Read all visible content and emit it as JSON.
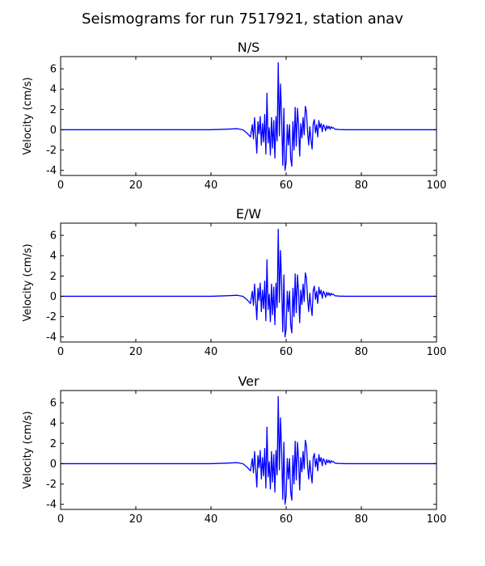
{
  "page_title": "Seismograms for run 7517921, station anav",
  "chart_data": [
    {
      "type": "line",
      "title": "N/S",
      "xlabel": "",
      "ylabel": "Velocity (cm/s)",
      "xlim": [
        0,
        100
      ],
      "ylim": [
        -4.5,
        7.2
      ],
      "xticks": [
        0,
        20,
        40,
        60,
        80,
        100
      ],
      "yticks": [
        -4,
        -2,
        0,
        2,
        4,
        6
      ],
      "grid": false,
      "color": "#0000ff",
      "series": [
        {
          "x": [
            0,
            10,
            20,
            30,
            40,
            44,
            47,
            48.5,
            49.5,
            50.5,
            51,
            51.3,
            51.6,
            51.9,
            52.2,
            52.5,
            52.8,
            53.1,
            53.4,
            53.7,
            54,
            54.3,
            54.6,
            54.9,
            55.2,
            55.5,
            55.8,
            56.1,
            56.4,
            56.7,
            57,
            57.3,
            57.6,
            57.9,
            58.2,
            58.5,
            58.8,
            59.1,
            59.4,
            59.7,
            60,
            60.3,
            60.6,
            60.9,
            61.2,
            61.5,
            61.8,
            62.1,
            62.4,
            62.7,
            63,
            63.3,
            63.6,
            63.9,
            64.2,
            64.5,
            64.8,
            65.1,
            65.4,
            65.7,
            66,
            66.3,
            66.6,
            66.9,
            67.2,
            67.5,
            67.8,
            68.1,
            68.4,
            68.7,
            69,
            69.3,
            69.6,
            69.9,
            70.2,
            70.5,
            70.8,
            71.1,
            71.4,
            71.7,
            72,
            72.3,
            72.6,
            73,
            74,
            76,
            80,
            90,
            100
          ],
          "values": [
            0,
            0,
            0,
            0,
            0,
            0.05,
            0.1,
            0,
            -0.3,
            -0.7,
            0.5,
            -0.9,
            1.2,
            -0.5,
            -2.3,
            0.8,
            -0.4,
            1.3,
            -1.5,
            0.6,
            -1.2,
            1.5,
            -2.4,
            3.6,
            -1.3,
            0.2,
            -2.5,
            1.2,
            -1.8,
            0.9,
            -2.8,
            1.3,
            -1.1,
            6.6,
            -0.6,
            4.5,
            1.2,
            -3.5,
            2.1,
            -4,
            -3.2,
            0.5,
            -1.5,
            0.5,
            -2.8,
            -3.6,
            0.8,
            -2.0,
            2.2,
            -1.6,
            2.1,
            0.5,
            -2.6,
            0.6,
            -0.8,
            1.2,
            -0.5,
            2.3,
            1.8,
            -0.2,
            -1.5,
            0.3,
            -1.0,
            -1.9,
            0.6,
            1.0,
            -0.3,
            0.5,
            -0.7,
            0.9,
            0.2,
            0.6,
            -0.2,
            0.5,
            0.3,
            -0.1,
            0.4,
            0.1,
            0.35,
            0.05,
            0.3,
            0.15,
            0.2,
            0.05,
            0.02,
            0,
            0,
            0,
            0
          ]
        }
      ]
    },
    {
      "type": "line",
      "title": "E/W",
      "xlabel": "",
      "ylabel": "Velocity (cm/s)",
      "xlim": [
        0,
        100
      ],
      "ylim": [
        -4.5,
        7.2
      ],
      "xticks": [
        0,
        20,
        40,
        60,
        80,
        100
      ],
      "yticks": [
        -4,
        -2,
        0,
        2,
        4,
        6
      ],
      "grid": false,
      "color": "#0000ff",
      "series": [
        {
          "x": [
            0,
            10,
            20,
            30,
            40,
            44,
            47,
            48.5,
            49.5,
            50.5,
            51,
            51.3,
            51.6,
            51.9,
            52.2,
            52.5,
            52.8,
            53.1,
            53.4,
            53.7,
            54,
            54.3,
            54.6,
            54.9,
            55.2,
            55.5,
            55.8,
            56.1,
            56.4,
            56.7,
            57,
            57.3,
            57.6,
            57.9,
            58.2,
            58.5,
            58.8,
            59.1,
            59.4,
            59.7,
            60,
            60.3,
            60.6,
            60.9,
            61.2,
            61.5,
            61.8,
            62.1,
            62.4,
            62.7,
            63,
            63.3,
            63.6,
            63.9,
            64.2,
            64.5,
            64.8,
            65.1,
            65.4,
            65.7,
            66,
            66.3,
            66.6,
            66.9,
            67.2,
            67.5,
            67.8,
            68.1,
            68.4,
            68.7,
            69,
            69.3,
            69.6,
            69.9,
            70.2,
            70.5,
            70.8,
            71.1,
            71.4,
            71.7,
            72,
            72.3,
            72.6,
            73,
            74,
            76,
            80,
            90,
            100
          ],
          "values": [
            0,
            0,
            0,
            0,
            0,
            0.05,
            0.1,
            0,
            -0.3,
            -0.7,
            0.5,
            -0.9,
            1.2,
            -0.5,
            -2.3,
            0.8,
            -0.4,
            1.3,
            -1.5,
            0.6,
            -1.2,
            1.5,
            -2.4,
            3.6,
            -1.3,
            0.2,
            -2.5,
            1.2,
            -1.8,
            0.9,
            -2.8,
            1.3,
            -1.1,
            6.6,
            -0.6,
            4.5,
            1.2,
            -3.5,
            2.1,
            -4,
            -3.2,
            0.5,
            -1.5,
            0.5,
            -2.8,
            -3.6,
            0.8,
            -2.0,
            2.2,
            -1.6,
            2.1,
            0.5,
            -2.6,
            0.6,
            -0.8,
            1.2,
            -0.5,
            2.3,
            1.8,
            -0.2,
            -1.5,
            0.3,
            -1.0,
            -1.9,
            0.6,
            1.0,
            -0.3,
            0.5,
            -0.7,
            0.9,
            0.2,
            0.6,
            -0.2,
            0.5,
            0.3,
            -0.1,
            0.4,
            0.1,
            0.35,
            0.05,
            0.3,
            0.15,
            0.2,
            0.05,
            0.02,
            0,
            0,
            0,
            0
          ]
        }
      ]
    },
    {
      "type": "line",
      "title": "Ver",
      "xlabel": "",
      "ylabel": "Velocity (cm/s)",
      "xlim": [
        0,
        100
      ],
      "ylim": [
        -4.5,
        7.2
      ],
      "xticks": [
        0,
        20,
        40,
        60,
        80,
        100
      ],
      "yticks": [
        -4,
        -2,
        0,
        2,
        4,
        6
      ],
      "grid": false,
      "color": "#0000ff",
      "series": [
        {
          "x": [
            0,
            10,
            20,
            30,
            40,
            44,
            47,
            48.5,
            49.5,
            50.5,
            51,
            51.3,
            51.6,
            51.9,
            52.2,
            52.5,
            52.8,
            53.1,
            53.4,
            53.7,
            54,
            54.3,
            54.6,
            54.9,
            55.2,
            55.5,
            55.8,
            56.1,
            56.4,
            56.7,
            57,
            57.3,
            57.6,
            57.9,
            58.2,
            58.5,
            58.8,
            59.1,
            59.4,
            59.7,
            60,
            60.3,
            60.6,
            60.9,
            61.2,
            61.5,
            61.8,
            62.1,
            62.4,
            62.7,
            63,
            63.3,
            63.6,
            63.9,
            64.2,
            64.5,
            64.8,
            65.1,
            65.4,
            65.7,
            66,
            66.3,
            66.6,
            66.9,
            67.2,
            67.5,
            67.8,
            68.1,
            68.4,
            68.7,
            69,
            69.3,
            69.6,
            69.9,
            70.2,
            70.5,
            70.8,
            71.1,
            71.4,
            71.7,
            72,
            72.3,
            72.6,
            73,
            74,
            76,
            80,
            90,
            100
          ],
          "values": [
            0,
            0,
            0,
            0,
            0,
            0.05,
            0.1,
            0,
            -0.3,
            -0.7,
            0.5,
            -0.9,
            1.2,
            -0.5,
            -2.3,
            0.8,
            -0.4,
            1.3,
            -1.5,
            0.6,
            -1.2,
            1.5,
            -2.4,
            3.6,
            -1.3,
            0.2,
            -2.5,
            1.2,
            -1.8,
            0.9,
            -2.8,
            1.3,
            -1.1,
            6.6,
            -0.6,
            4.5,
            1.2,
            -3.5,
            2.1,
            -4,
            -3.2,
            0.5,
            -1.5,
            0.5,
            -2.8,
            -3.6,
            0.8,
            -2.0,
            2.2,
            -1.6,
            2.1,
            0.5,
            -2.6,
            0.6,
            -0.8,
            1.2,
            -0.5,
            2.3,
            1.8,
            -0.2,
            -1.5,
            0.3,
            -1.0,
            -1.9,
            0.6,
            1.0,
            -0.3,
            0.5,
            -0.7,
            0.9,
            0.2,
            0.6,
            -0.2,
            0.5,
            0.3,
            -0.1,
            0.4,
            0.1,
            0.35,
            0.05,
            0.3,
            0.15,
            0.2,
            0.05,
            0.02,
            0,
            0,
            0,
            0
          ]
        }
      ]
    }
  ]
}
